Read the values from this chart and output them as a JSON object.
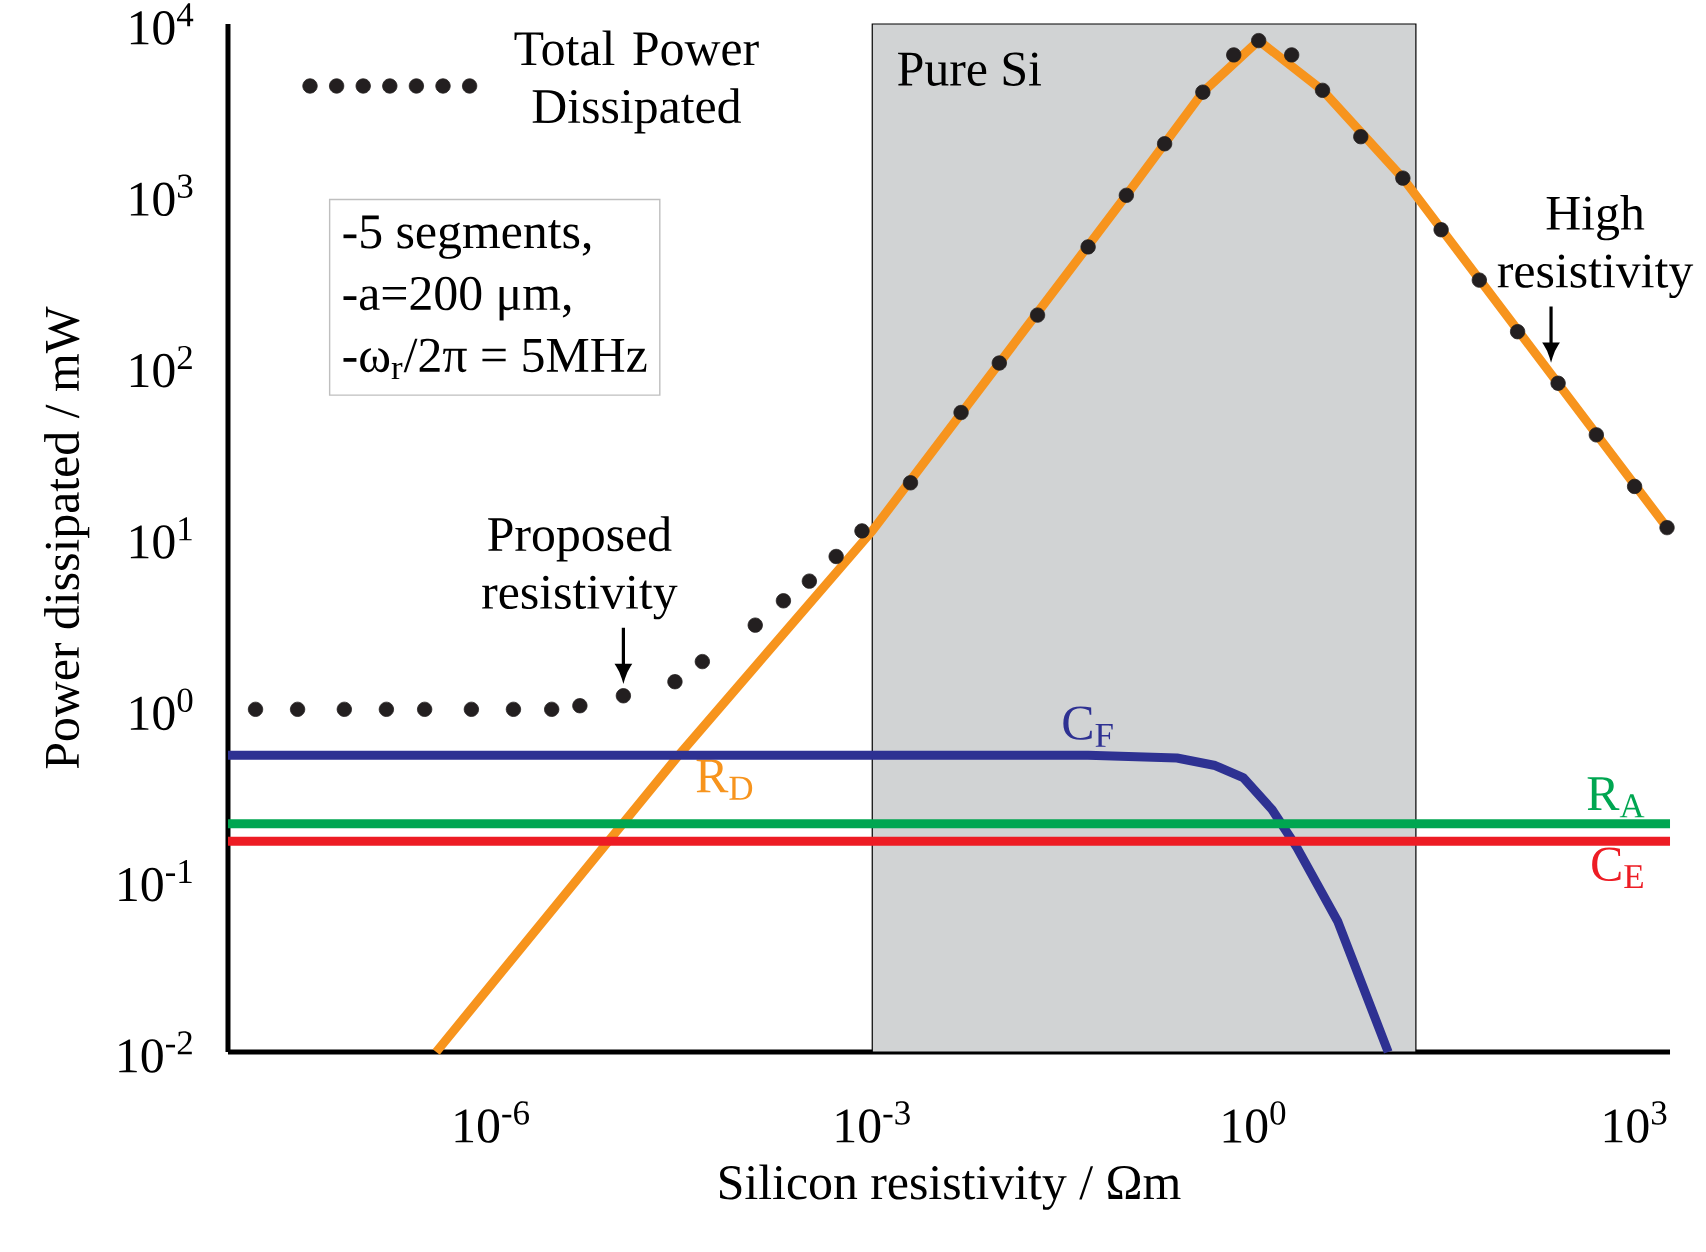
{
  "chart_data": {
    "type": "line",
    "xlabel": "Silicon resistivity / Ωm",
    "ylabel": "Power dissipated / mW",
    "log": "xy",
    "legend": "top left",
    "xlim": [
      8.5e-09,
      1900
    ],
    "ylim": [
      0.01,
      10000
    ],
    "xticks": [
      {
        "value": 1e-06,
        "label": "10$^{-6}$"
      },
      {
        "value": 0.001,
        "label": "10$^{-3}$"
      },
      {
        "value": 1,
        "label": "10$^{0}$"
      },
      {
        "value": 1000,
        "label": "10$^{3}$"
      }
    ],
    "yticks": [
      {
        "value": 0.01,
        "label": "10$^{-2}$"
      },
      {
        "value": 0.1,
        "label": "10$^{-1}$"
      },
      {
        "value": 1,
        "label": "10$^{0}$"
      },
      {
        "value": 10,
        "label": "10$^{1}$"
      },
      {
        "value": 100,
        "label": "10$^{2}$"
      },
      {
        "value": 1000,
        "label": "10$^{3}$"
      },
      {
        "value": 10000,
        "label": "10$^{4}$"
      }
    ],
    "bands": [
      {
        "axis": "x",
        "from": 0.001,
        "to": 19,
        "label": "Pure Si",
        "color": "#d1d3d4"
      }
    ],
    "annotations": [
      "-5 segments,",
      "-a=200 μm,",
      "-ω$_{r}$/2π = 5MHz",
      {
        "text": "Proposed resistivity",
        "x": 1.1e-05,
        "y": 1.2
      },
      {
        "text": "High resistivity",
        "x": 220,
        "y": 90
      }
    ],
    "series": [
      {
        "name": "Total Power Dissipated",
        "type": "scatter",
        "marker": "circle",
        "color": "#231f20",
        "x": [
          1.4e-08,
          3e-08,
          7e-08,
          1.5e-07,
          3e-07,
          7e-07,
          1.5e-06,
          3e-06,
          5e-06,
          1.1e-05,
          2.8e-05,
          4.6e-05,
          0.00012,
          0.0002,
          0.00032,
          0.00052,
          0.00083,
          0.002,
          0.005,
          0.01,
          0.02,
          0.05,
          0.1,
          0.2,
          0.4,
          0.7,
          1.1,
          2,
          3.5,
          7,
          15,
          30,
          60,
          120,
          250,
          500,
          1000,
          1800
        ],
        "values": [
          1,
          1,
          1,
          1,
          1,
          1,
          1,
          1,
          1.05,
          1.2,
          1.45,
          1.9,
          3.1,
          4.3,
          5.6,
          7.8,
          11,
          21,
          54,
          105,
          200,
          500,
          1000,
          2000,
          4000,
          6600,
          8000,
          6600,
          4100,
          2200,
          1260,
          630,
          320,
          160,
          80,
          40,
          20,
          11.5
        ]
      },
      {
        "name": "R$_{D}$",
        "color": "#f7941d",
        "x": [
          3.7e-07,
          3e-05,
          0.001,
          0.1,
          0.4,
          1.1,
          3.5,
          15,
          1800
        ],
        "values": [
          0.01,
          0.54,
          11,
          1000,
          4000,
          8000,
          4100,
          1260,
          11.5
        ]
      },
      {
        "name": "C$_{F}$",
        "color": "#2e3192",
        "x": [
          8.5e-09,
          0.05,
          0.25,
          0.5,
          0.83,
          1.4,
          2.2,
          4.6,
          11.5
        ],
        "values": [
          0.54,
          0.54,
          0.52,
          0.47,
          0.4,
          0.26,
          0.156,
          0.058,
          0.01
        ]
      },
      {
        "name": "R$_{A}$",
        "color": "#00a651",
        "x": [
          8.5e-09,
          1900
        ],
        "values": [
          0.215,
          0.215
        ]
      },
      {
        "name": "C$_{E}$",
        "color": "#ed1c24",
        "x": [
          8.5e-09,
          1900
        ],
        "values": [
          0.17,
          0.17
        ]
      }
    ]
  }
}
